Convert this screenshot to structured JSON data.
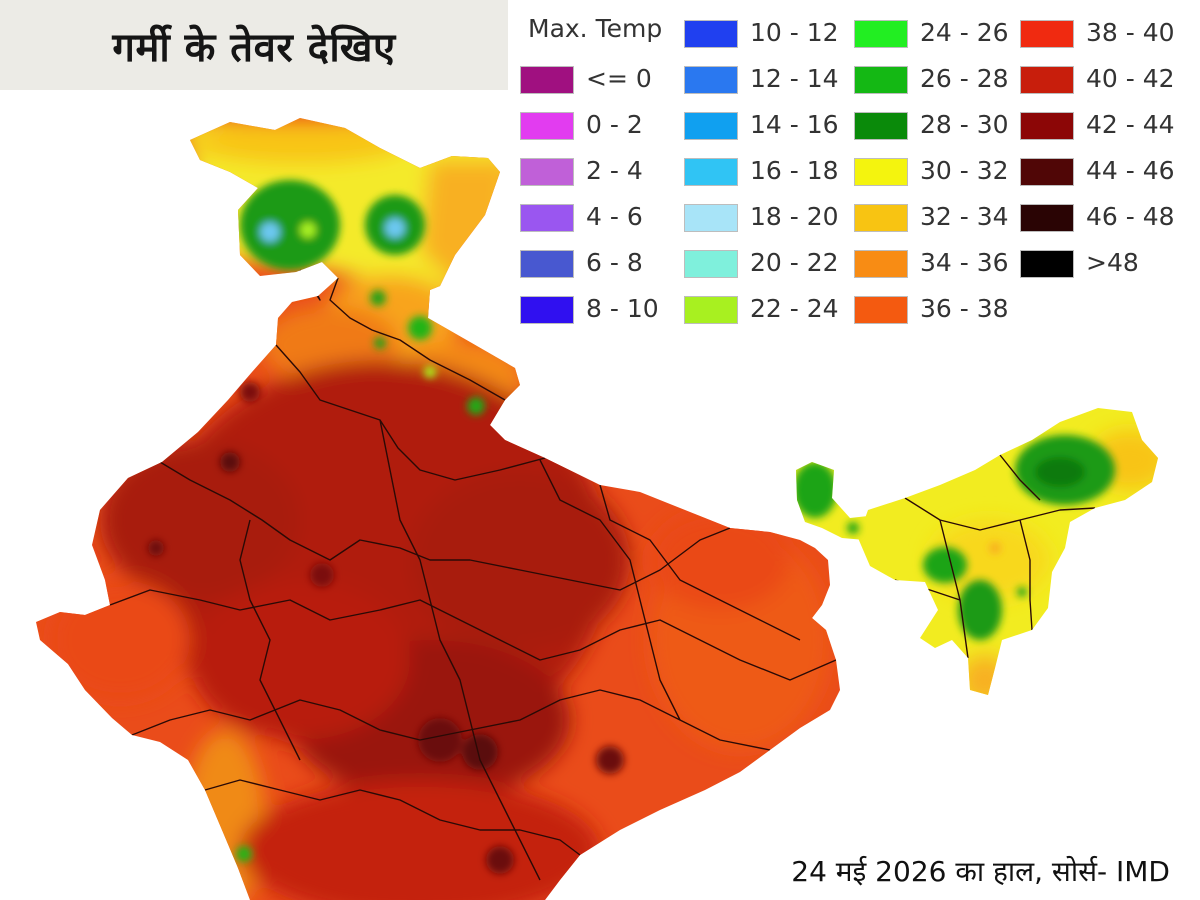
{
  "headline": "गर्मी के तेवर देखिए",
  "legend": {
    "title": "Max. Temp",
    "items": [
      {
        "label": "<= 0",
        "color": "#a01080"
      },
      {
        "label": "0 - 2",
        "color": "#e23cf0"
      },
      {
        "label": "2 - 4",
        "color": "#c060d8"
      },
      {
        "label": "4 - 6",
        "color": "#9a56f0"
      },
      {
        "label": "6 - 8",
        "color": "#4858d0"
      },
      {
        "label": "8 - 10",
        "color": "#3010f0"
      },
      {
        "label": "10 - 12",
        "color": "#2040f0"
      },
      {
        "label": "12 - 14",
        "color": "#2a78f0"
      },
      {
        "label": "14 - 16",
        "color": "#10a0f0"
      },
      {
        "label": "16 - 18",
        "color": "#30c4f4"
      },
      {
        "label": "18 - 20",
        "color": "#a8e4f8"
      },
      {
        "label": "20 - 22",
        "color": "#7ff0dc"
      },
      {
        "label": "22 - 24",
        "color": "#a8f020"
      },
      {
        "label": "24 - 26",
        "color": "#22ee22"
      },
      {
        "label": "26 - 28",
        "color": "#14b814"
      },
      {
        "label": "28 - 30",
        "color": "#0a8a0a"
      },
      {
        "label": "30 - 32",
        "color": "#f4f40e"
      },
      {
        "label": "32 - 34",
        "color": "#f8c412"
      },
      {
        "label": "34 - 36",
        "color": "#f88c14"
      },
      {
        "label": "36 - 38",
        "color": "#f45a10"
      },
      {
        "label": "38 - 40",
        "color": "#f02a10"
      },
      {
        "label": "40 - 42",
        "color": "#c81e0c"
      },
      {
        "label": "42 - 44",
        "color": "#8c0606"
      },
      {
        "label": "44 - 46",
        "color": "#500606"
      },
      {
        "label": "46 - 48",
        "color": "#2a0404"
      },
      {
        "label": ">48",
        "color": "#000000"
      }
    ]
  },
  "caption": "24 मई 2026 का हाल, सोर्स- IMD"
}
